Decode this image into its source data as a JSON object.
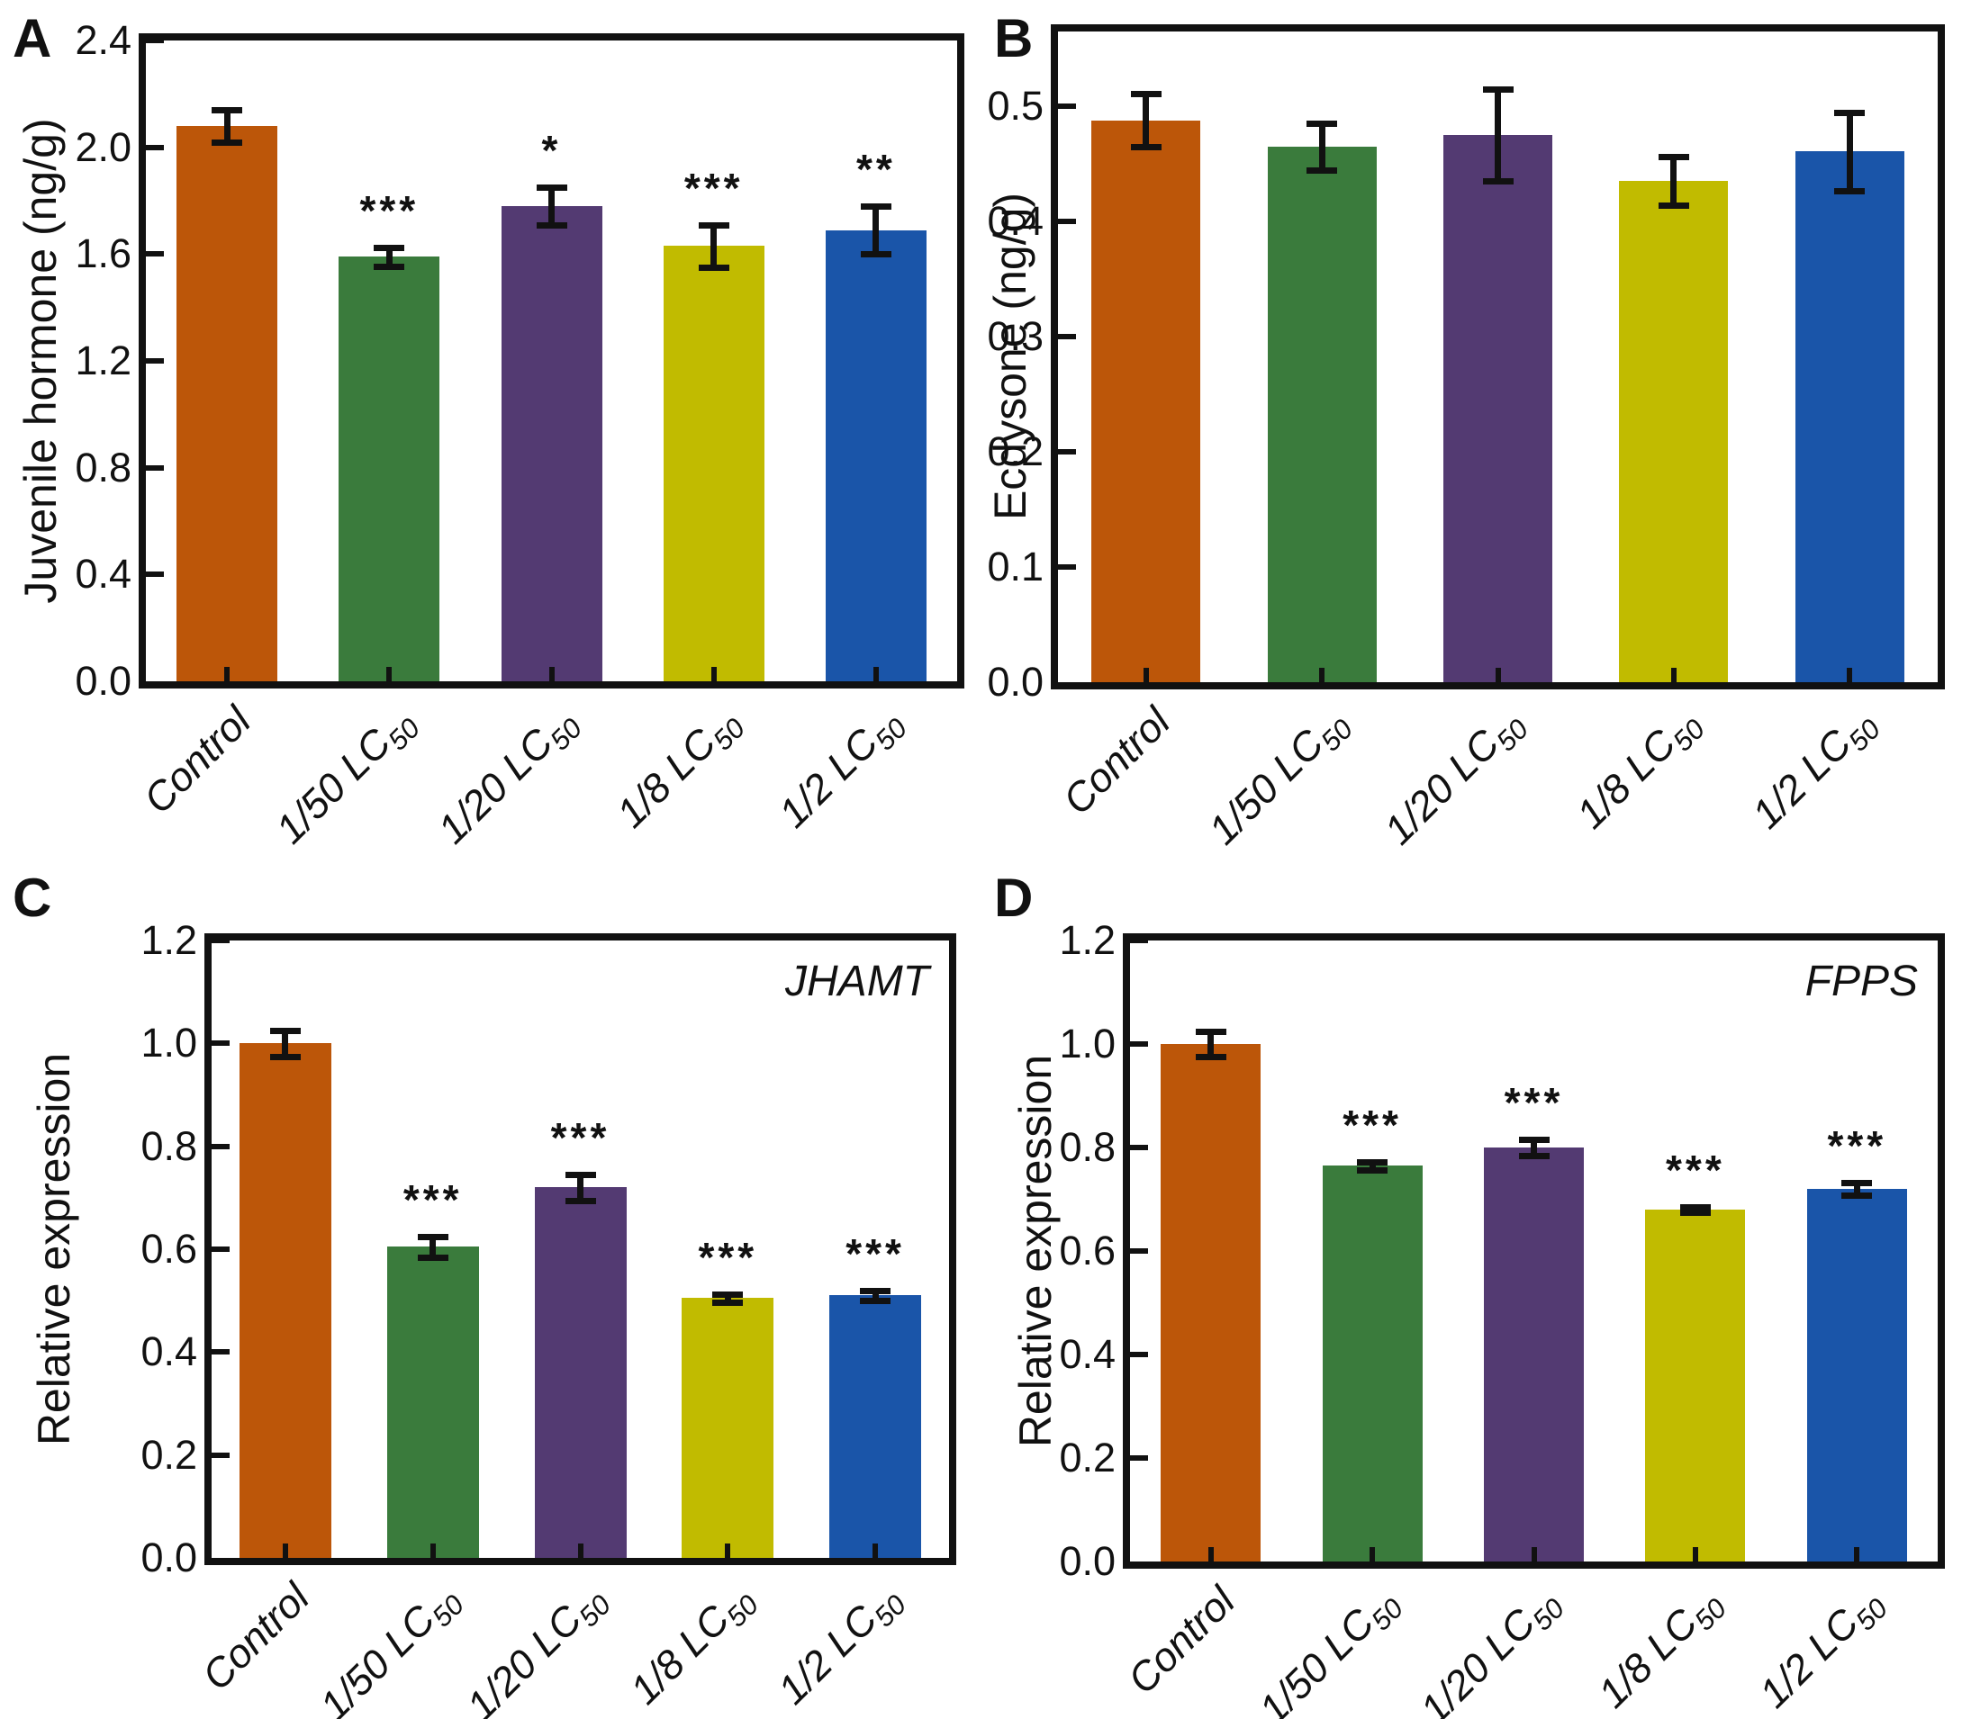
{
  "figure": {
    "background": "#ffffff",
    "axis_color": "#111111",
    "error_bar_color": "#111111",
    "bar_palette": [
      "#BC5609",
      "#3A7B3C",
      "#533A72",
      "#C1BB00",
      "#1A55A9"
    ],
    "panel_letters": [
      "A",
      "B",
      "C",
      "D"
    ],
    "category_labels": [
      {
        "base": "Control",
        "sub": ""
      },
      {
        "base": "1/50 LC",
        "sub": "50"
      },
      {
        "base": "1/20 LC",
        "sub": "50"
      },
      {
        "base": "1/8 LC",
        "sub": "50"
      },
      {
        "base": "1/2 LC",
        "sub": "50"
      }
    ]
  },
  "chart_data": [
    {
      "panel": "A",
      "type": "bar",
      "ylabel": "Juvenile hormone (ng/g)",
      "gene_label": "",
      "categories": [
        "Control",
        "1/50 LC50",
        "1/20 LC50",
        "1/8 LC50",
        "1/2 LC50"
      ],
      "values": [
        2.08,
        1.59,
        1.78,
        1.63,
        1.69
      ],
      "errors": [
        0.06,
        0.035,
        0.07,
        0.08,
        0.09
      ],
      "significance": [
        "",
        "***",
        "*",
        "***",
        "**"
      ],
      "ylim": [
        0,
        2.4
      ],
      "yticks": [
        0.0,
        0.4,
        0.8,
        1.2,
        1.6,
        2.0,
        2.4
      ],
      "ytick_labels": [
        "0.0",
        "0.4",
        "0.8",
        "1.2",
        "1.6",
        "2.0",
        "2.4"
      ],
      "grid": false,
      "legend": "none"
    },
    {
      "panel": "B",
      "type": "bar",
      "ylabel": "Ecdysone (ng/g)",
      "gene_label": "",
      "categories": [
        "Control",
        "1/50 LC50",
        "1/20 LC50",
        "1/8 LC50",
        "1/2 LC50"
      ],
      "values": [
        0.488,
        0.465,
        0.475,
        0.435,
        0.461
      ],
      "errors": [
        0.023,
        0.02,
        0.04,
        0.021,
        0.034
      ],
      "significance": [
        "",
        "",
        "",
        "",
        ""
      ],
      "ylim": [
        0,
        0.565
      ],
      "yticks": [
        0.0,
        0.1,
        0.2,
        0.3,
        0.4,
        0.5
      ],
      "ytick_labels": [
        "0.0",
        "0.1",
        "0.2",
        "0.3",
        "0.4",
        "0.5"
      ],
      "grid": false,
      "legend": "none"
    },
    {
      "panel": "C",
      "type": "bar",
      "ylabel": "Relative expression",
      "gene_label": "JHAMT",
      "categories": [
        "Control",
        "1/50 LC50",
        "1/20 LC50",
        "1/8 LC50",
        "1/2 LC50"
      ],
      "values": [
        1.0,
        0.605,
        0.72,
        0.505,
        0.51
      ],
      "errors": [
        0.025,
        0.02,
        0.025,
        0.008,
        0.01
      ],
      "significance": [
        "",
        "***",
        "***",
        "***",
        "***"
      ],
      "ylim": [
        0,
        1.2
      ],
      "yticks": [
        0.0,
        0.2,
        0.4,
        0.6,
        0.8,
        1.0,
        1.2
      ],
      "ytick_labels": [
        "0.0",
        "0.2",
        "0.4",
        "0.6",
        "0.8",
        "1.0",
        "1.2"
      ],
      "grid": false,
      "legend": "none"
    },
    {
      "panel": "D",
      "type": "bar",
      "ylabel": "Relative expression",
      "gene_label": "FPPS",
      "categories": [
        "Control",
        "1/50 LC50",
        "1/20 LC50",
        "1/8 LC50",
        "1/2 LC50"
      ],
      "values": [
        1.0,
        0.765,
        0.8,
        0.68,
        0.72
      ],
      "errors": [
        0.025,
        0.008,
        0.015,
        0.005,
        0.013
      ],
      "significance": [
        "",
        "***",
        "***",
        "***",
        "***"
      ],
      "ylim": [
        0,
        1.2
      ],
      "yticks": [
        0.0,
        0.2,
        0.4,
        0.6,
        0.8,
        1.0,
        1.2
      ],
      "ytick_labels": [
        "0.0",
        "0.2",
        "0.4",
        "0.6",
        "0.8",
        "1.0",
        "1.2"
      ],
      "grid": false,
      "legend": "none"
    }
  ]
}
